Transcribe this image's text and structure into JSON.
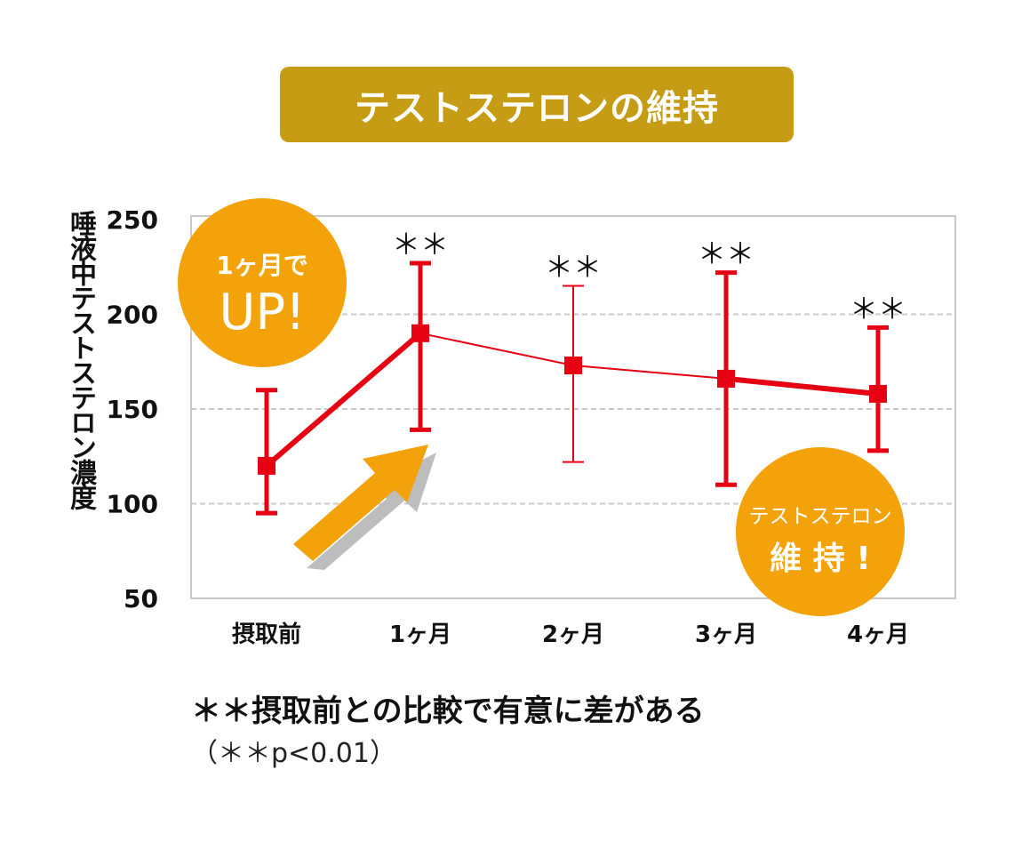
{
  "banner": {
    "title": "テストステロンの維持"
  },
  "chart_data": {
    "type": "line",
    "title": "テストステロンの維持",
    "xlabel": "",
    "ylabel": "唾液中テストステロン濃度",
    "ylim": [
      50,
      250
    ],
    "yticks": [
      50,
      100,
      150,
      200,
      250
    ],
    "grid": true,
    "categories": [
      "摂取前",
      "1ヶ月",
      "2ヶ月",
      "3ヶ月",
      "4ヶ月"
    ],
    "series": [
      {
        "name": "テストステロン濃度",
        "values": [
          120,
          190,
          173,
          166,
          158
        ],
        "error_upper": [
          160,
          227,
          215,
          222,
          193
        ],
        "error_lower": [
          95,
          139,
          122,
          110,
          128
        ],
        "color": "#e60012"
      }
    ],
    "significance": [
      "",
      "＊＊",
      "＊＊",
      "＊＊",
      "＊＊"
    ],
    "annotations": {
      "up_badge": {
        "line1": "1ヶ月で",
        "line2": "UP!"
      },
      "maintain_badge": {
        "line1": "テストステロン",
        "line2": "維 持 !"
      }
    }
  },
  "notes": {
    "significance": "＊＊摂取前との比較で有意に差がある",
    "pvalue": "（＊＊p<0.01）"
  },
  "colors": {
    "banner": "#c69c15",
    "series": "#e60012",
    "badge": "#f4a20a"
  }
}
